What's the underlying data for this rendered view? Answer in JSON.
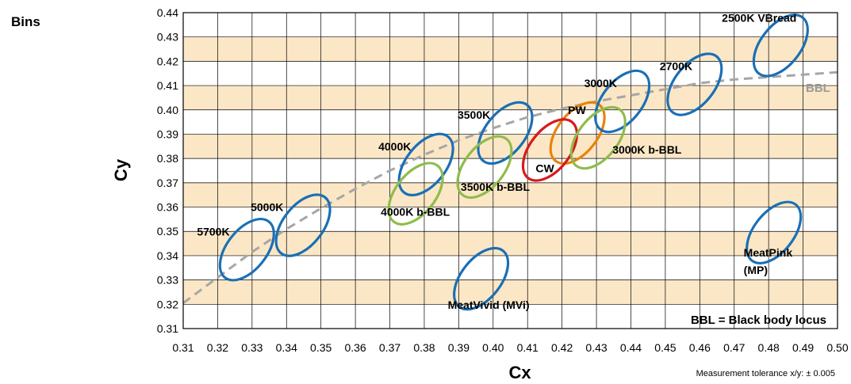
{
  "side_title": "Bins",
  "tolerance_note": "Measurement tolerance x/y: ± 0.005",
  "chart_data": {
    "type": "scatter",
    "title": "",
    "xlabel": "Cx",
    "ylabel": "Cy",
    "xlim": [
      0.31,
      0.5
    ],
    "ylim": [
      0.31,
      0.44
    ],
    "x_ticks": [
      "0.31",
      "0.32",
      "0.33",
      "0.34",
      "0.35",
      "0.36",
      "0.37",
      "0.38",
      "0.39",
      "0.40",
      "0.41",
      "0.42",
      "0.43",
      "0.44",
      "0.45",
      "0.46",
      "0.47",
      "0.48",
      "0.49",
      "0.50"
    ],
    "y_ticks": [
      "0.31",
      "0.32",
      "0.33",
      "0.34",
      "0.35",
      "0.36",
      "0.37",
      "0.38",
      "0.39",
      "0.40",
      "0.41",
      "0.42",
      "0.43",
      "0.44"
    ],
    "band_color": "#fbe7c6",
    "grid": true,
    "bins": [
      {
        "name": "5700K",
        "cx": 0.3285,
        "cy": 0.3425,
        "color": "#1a6fb5"
      },
      {
        "name": "5000K",
        "cx": 0.3448,
        "cy": 0.3525,
        "color": "#1a6fb5"
      },
      {
        "name": "4000K",
        "cx": 0.3805,
        "cy": 0.3775,
        "color": "#1a6fb5"
      },
      {
        "name": "4000K b-BBL",
        "cx": 0.3775,
        "cy": 0.3655,
        "color": "#8fbc4a"
      },
      {
        "name": "3500K",
        "cx": 0.4035,
        "cy": 0.3905,
        "color": "#1a6fb5"
      },
      {
        "name": "3500K b-BBL",
        "cx": 0.3975,
        "cy": 0.3765,
        "color": "#8fbc4a"
      },
      {
        "name": "PW",
        "cx": 0.4245,
        "cy": 0.3905,
        "color": "#e8820c"
      },
      {
        "name": "CW",
        "cx": 0.4165,
        "cy": 0.3835,
        "color": "#d7191c"
      },
      {
        "name": "3000K",
        "cx": 0.4375,
        "cy": 0.4035,
        "color": "#1a6fb5"
      },
      {
        "name": "3000K b-BBL",
        "cx": 0.4305,
        "cy": 0.3885,
        "color": "#8fbc4a"
      },
      {
        "name": "2700K",
        "cx": 0.4585,
        "cy": 0.4105,
        "color": "#1a6fb5"
      },
      {
        "name": "2500K VBread",
        "cx": 0.4835,
        "cy": 0.4265,
        "color": "#1a6fb5"
      },
      {
        "name": "MeatVivid (MVi)",
        "cx": 0.3965,
        "cy": 0.3305,
        "color": "#1a6fb5"
      },
      {
        "name": "MeatPink",
        "name_line2": "(MP)",
        "cx": 0.4815,
        "cy": 0.3495,
        "color": "#1a6fb5"
      }
    ],
    "bbl_curve": {
      "name": "BBL",
      "color": "#a6a6a6",
      "x": [
        0.31,
        0.32,
        0.33,
        0.34,
        0.35,
        0.36,
        0.37,
        0.38,
        0.39,
        0.4,
        0.41,
        0.42,
        0.43,
        0.44,
        0.45,
        0.46,
        0.47,
        0.48,
        0.49,
        0.5
      ],
      "y": [
        0.3205,
        0.331,
        0.3415,
        0.351,
        0.3595,
        0.3675,
        0.375,
        0.3815,
        0.3875,
        0.3925,
        0.397,
        0.4005,
        0.4035,
        0.406,
        0.4085,
        0.411,
        0.4125,
        0.4135,
        0.4145,
        0.4155
      ]
    },
    "annotation": "BBL = Black body locus"
  }
}
